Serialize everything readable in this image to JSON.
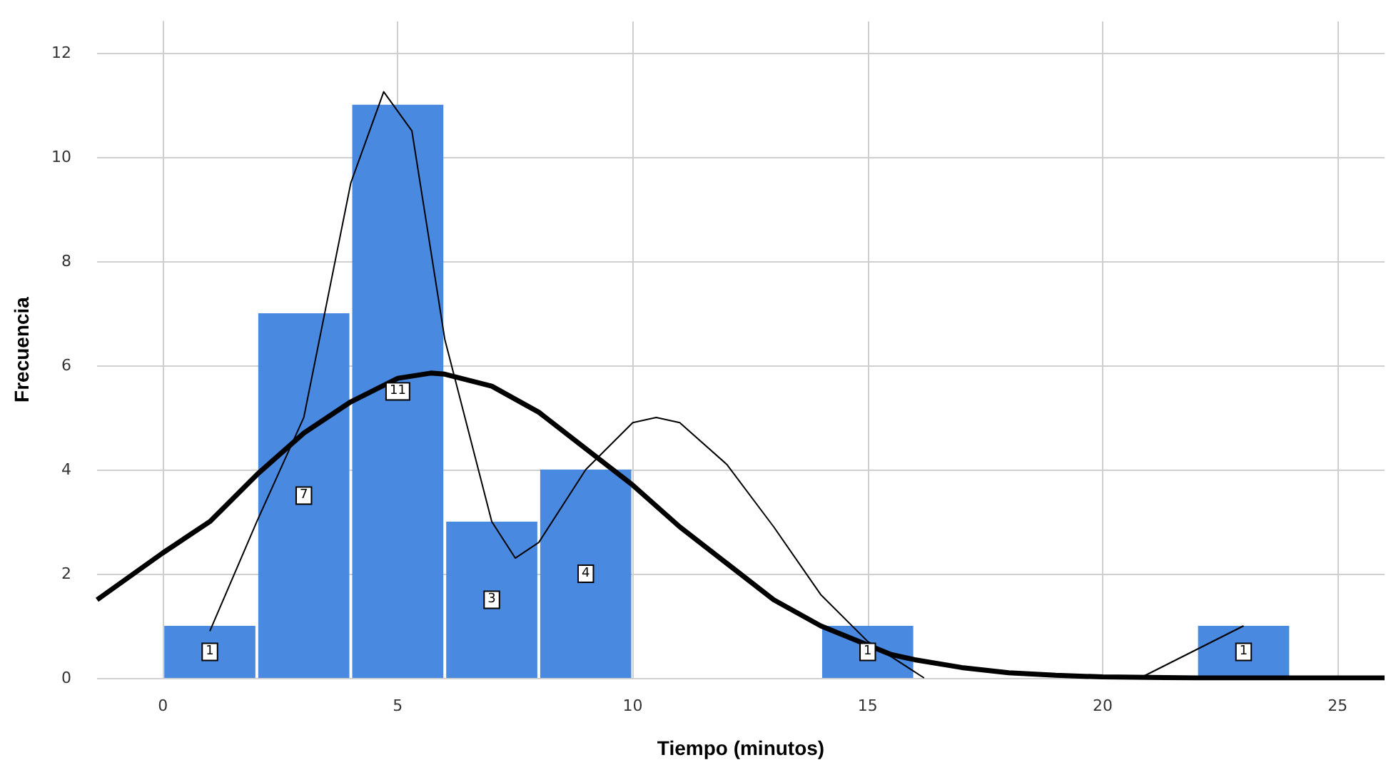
{
  "chart_data": {
    "type": "histogram",
    "xlabel": "Tiempo (minutos)",
    "ylabel": "Frecuencia",
    "xlim": [
      -1.4,
      26
    ],
    "xticks": [
      0,
      5,
      10,
      15,
      20,
      25
    ],
    "ylim": [
      0,
      12.6
    ],
    "yticks": [
      0,
      2,
      4,
      6,
      8,
      10,
      12
    ],
    "grid": true,
    "marker": "none",
    "series": [
      {
        "color": "#4a89e0",
        "bins": [
          0,
          2,
          4,
          6,
          8,
          10,
          12,
          14,
          16,
          18,
          20,
          22,
          24
        ],
        "values": [
          1,
          7,
          11,
          3,
          4,
          0,
          0,
          1,
          0,
          0,
          0,
          1
        ],
        "value_labels": [
          "1",
          "7",
          "11",
          "3",
          "4",
          null,
          null,
          "1",
          null,
          null,
          null,
          "1"
        ]
      },
      {
        "type": "line",
        "color": "#000000",
        "x": [
          -1.4,
          0,
          1,
          2,
          3,
          4,
          5,
          5.7,
          6,
          7,
          8,
          9,
          10,
          11,
          12,
          13,
          14,
          15.5,
          16,
          17,
          18,
          19,
          20,
          22,
          26
        ],
        "values": [
          1.5,
          2.4,
          3.0,
          3.9,
          4.7,
          5.3,
          5.75,
          5.85,
          5.83,
          5.6,
          5.1,
          4.4,
          3.7,
          2.9,
          2.2,
          1.5,
          1.0,
          0.45,
          0.35,
          0.2,
          0.1,
          0.05,
          0.02,
          0,
          0
        ]
      },
      {
        "type": "line",
        "color": "#000000",
        "x": [
          1,
          2,
          3,
          4,
          4.7,
          5.3,
          6,
          7,
          7.5,
          8,
          9,
          10,
          10.5,
          11,
          12,
          13,
          14,
          15,
          16.2,
          18,
          20.8,
          23
        ],
        "values": [
          0.9,
          3.0,
          5.0,
          9.5,
          11.25,
          10.5,
          6.5,
          3.0,
          2.3,
          2.6,
          4.0,
          4.9,
          5.0,
          4.9,
          4.1,
          2.9,
          1.6,
          0.7,
          0,
          null,
          0,
          1
        ]
      }
    ]
  }
}
